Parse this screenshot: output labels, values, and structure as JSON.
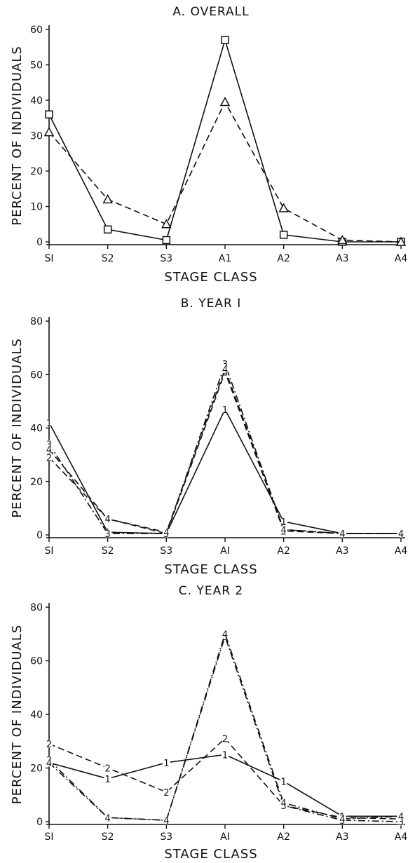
{
  "chart_data": [
    {
      "type": "line",
      "title": "A. OVERALL",
      "xlabel": "STAGE CLASS",
      "ylabel": "PERCENT OF INDIVIDUALS",
      "categories": [
        "SI",
        "S2",
        "S3",
        "A1",
        "A2",
        "A3",
        "A4"
      ],
      "ylim": [
        0,
        60
      ],
      "yticks": [
        "0",
        "10",
        "20",
        "30",
        "40",
        "50",
        "60"
      ],
      "grid": false,
      "series": [
        {
          "values": [
            36,
            3.5,
            0.5,
            57,
            2,
            0,
            0
          ],
          "marker": "square",
          "style": "solid"
        },
        {
          "values": [
            31,
            12,
            5,
            39.5,
            9.5,
            0.5,
            0
          ],
          "marker": "triangle",
          "style": "dashed"
        }
      ]
    },
    {
      "type": "line",
      "title": "B. YEAR I",
      "xlabel": "STAGE CLASS",
      "ylabel": "PERCENT OF INDIVIDUALS",
      "categories": [
        "SI",
        "S2",
        "S3",
        "AI",
        "A2",
        "A3",
        "A4"
      ],
      "ylim": [
        0,
        80
      ],
      "yticks": [
        "0",
        "20",
        "40",
        "60",
        "80"
      ],
      "grid": false,
      "series": [
        {
          "values": [
            42,
            1,
            0.5,
            47,
            5,
            0.5,
            0.5
          ],
          "marker": "1",
          "style": "solid"
        },
        {
          "values": [
            29,
            6,
            0.5,
            61,
            1.5,
            0.5,
            0.5
          ],
          "marker": "2",
          "style": "dashed"
        },
        {
          "values": [
            34,
            0.5,
            0.5,
            64,
            2,
            0.5,
            0.5
          ],
          "marker": "3",
          "style": "dashdot"
        },
        {
          "values": [
            32,
            6,
            1,
            62,
            2,
            0.5,
            0.5
          ],
          "marker": "4",
          "style": "dashed"
        }
      ]
    },
    {
      "type": "line",
      "title": "C. YEAR 2",
      "xlabel": "STAGE CLASS",
      "ylabel": "PERCENT OF INDIVIDUALS",
      "categories": [
        "SI",
        "S2",
        "S3",
        "AI",
        "A2",
        "A3",
        "A4"
      ],
      "ylim": [
        0,
        80
      ],
      "yticks": [
        "0",
        "20",
        "40",
        "60",
        "80"
      ],
      "grid": false,
      "series": [
        {
          "values": [
            22,
            16,
            22,
            25,
            15,
            2,
            2
          ],
          "marker": "1",
          "style": "solid"
        },
        {
          "values": [
            29,
            20,
            11,
            31,
            6,
            1.5,
            1
          ],
          "marker": "2",
          "style": "dashed"
        },
        {
          "values": [
            23,
            1.5,
            0.5,
            69,
            6,
            0.5,
            0
          ],
          "marker": "3",
          "style": "dashdot"
        },
        {
          "values": [
            22,
            1.5,
            0.5,
            70,
            7,
            1,
            2
          ],
          "marker": "4",
          "style": "dashdot"
        }
      ]
    }
  ]
}
